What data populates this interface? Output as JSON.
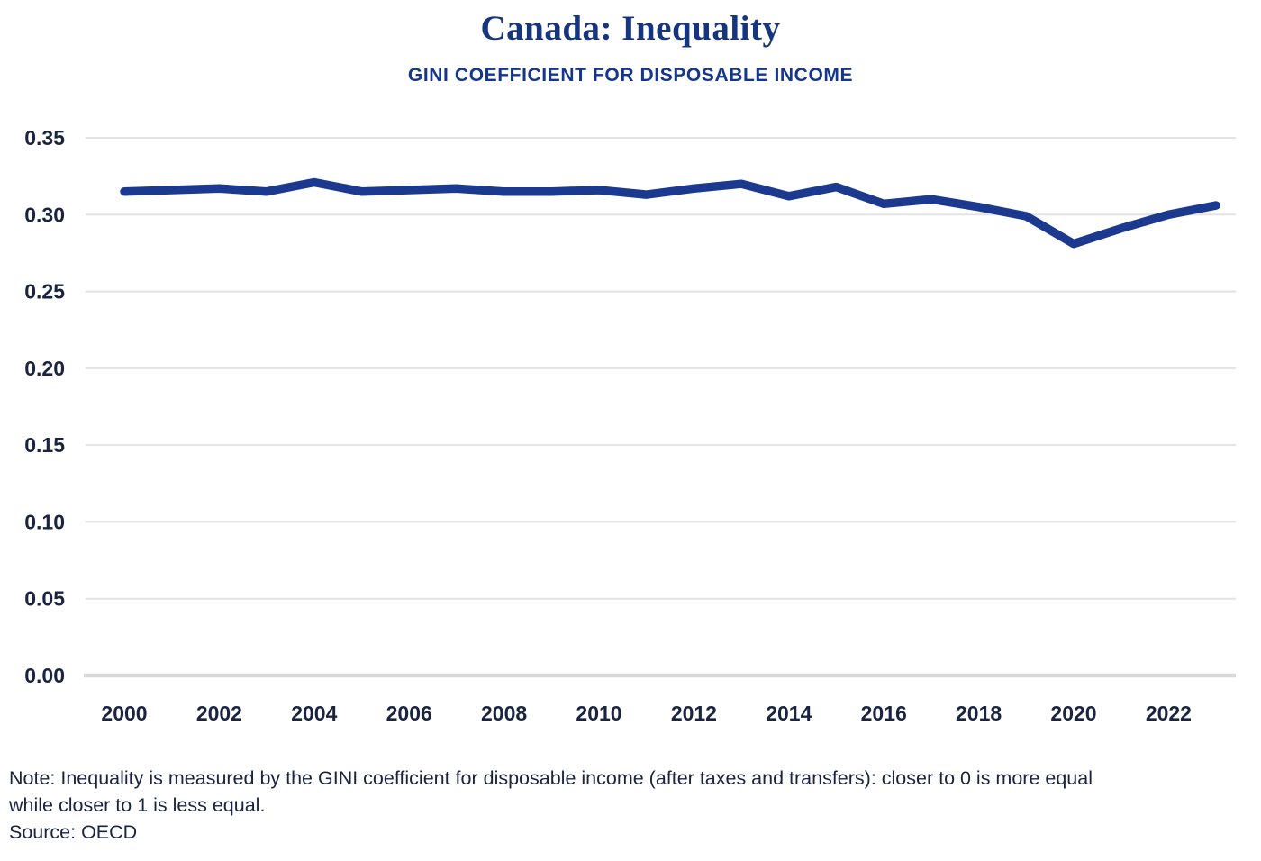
{
  "colors": {
    "line": "#1b3a8f",
    "title": "#17357f",
    "subtitle": "#14368c",
    "axis_text": "#1a2440",
    "gridline": "#e3e3e3",
    "baseline": "#d8d8d8"
  },
  "chart_data": {
    "type": "line",
    "title": "Canada: Inequality",
    "subtitle": "GINI COEFFICIENT FOR DISPOSABLE INCOME",
    "xlabel": "",
    "ylabel": "",
    "ylim": [
      0,
      0.35
    ],
    "grid": "horizontal",
    "legend": "none",
    "series": [
      {
        "name": "GINI coefficient for disposable income (Canada)",
        "x": [
          2000,
          2001,
          2002,
          2003,
          2004,
          2005,
          2006,
          2007,
          2008,
          2009,
          2010,
          2011,
          2012,
          2013,
          2014,
          2015,
          2016,
          2017,
          2018,
          2019,
          2020,
          2021,
          2022,
          2023
        ],
        "values": [
          0.315,
          0.316,
          0.317,
          0.315,
          0.321,
          0.315,
          0.316,
          0.317,
          0.315,
          0.315,
          0.316,
          0.313,
          0.317,
          0.32,
          0.312,
          0.318,
          0.307,
          0.31,
          0.305,
          0.299,
          0.281,
          0.291,
          0.3,
          0.306
        ]
      }
    ],
    "yticks": [
      {
        "value": 0.0,
        "label": "0.00"
      },
      {
        "value": 0.05,
        "label": "0.05"
      },
      {
        "value": 0.1,
        "label": "0.10"
      },
      {
        "value": 0.15,
        "label": "0.15"
      },
      {
        "value": 0.2,
        "label": "0.20"
      },
      {
        "value": 0.25,
        "label": "0.25"
      },
      {
        "value": 0.3,
        "label": "0.30"
      },
      {
        "value": 0.35,
        "label": "0.35"
      }
    ],
    "xticks": [
      {
        "value": 2000,
        "label": "2000"
      },
      {
        "value": 2002,
        "label": "2002"
      },
      {
        "value": 2004,
        "label": "2004"
      },
      {
        "value": 2006,
        "label": "2006"
      },
      {
        "value": 2008,
        "label": "2008"
      },
      {
        "value": 2010,
        "label": "2010"
      },
      {
        "value": 2012,
        "label": "2012"
      },
      {
        "value": 2014,
        "label": "2014"
      },
      {
        "value": 2016,
        "label": "2016"
      },
      {
        "value": 2018,
        "label": "2018"
      },
      {
        "value": 2020,
        "label": "2020"
      },
      {
        "value": 2022,
        "label": "2022"
      }
    ],
    "note_lines": [
      "Note: Inequality is measured by the GINI coefficient for disposable income (after taxes and transfers): closer to 0 is more equal",
      "while closer to 1 is less equal."
    ],
    "source": "Source: OECD"
  }
}
